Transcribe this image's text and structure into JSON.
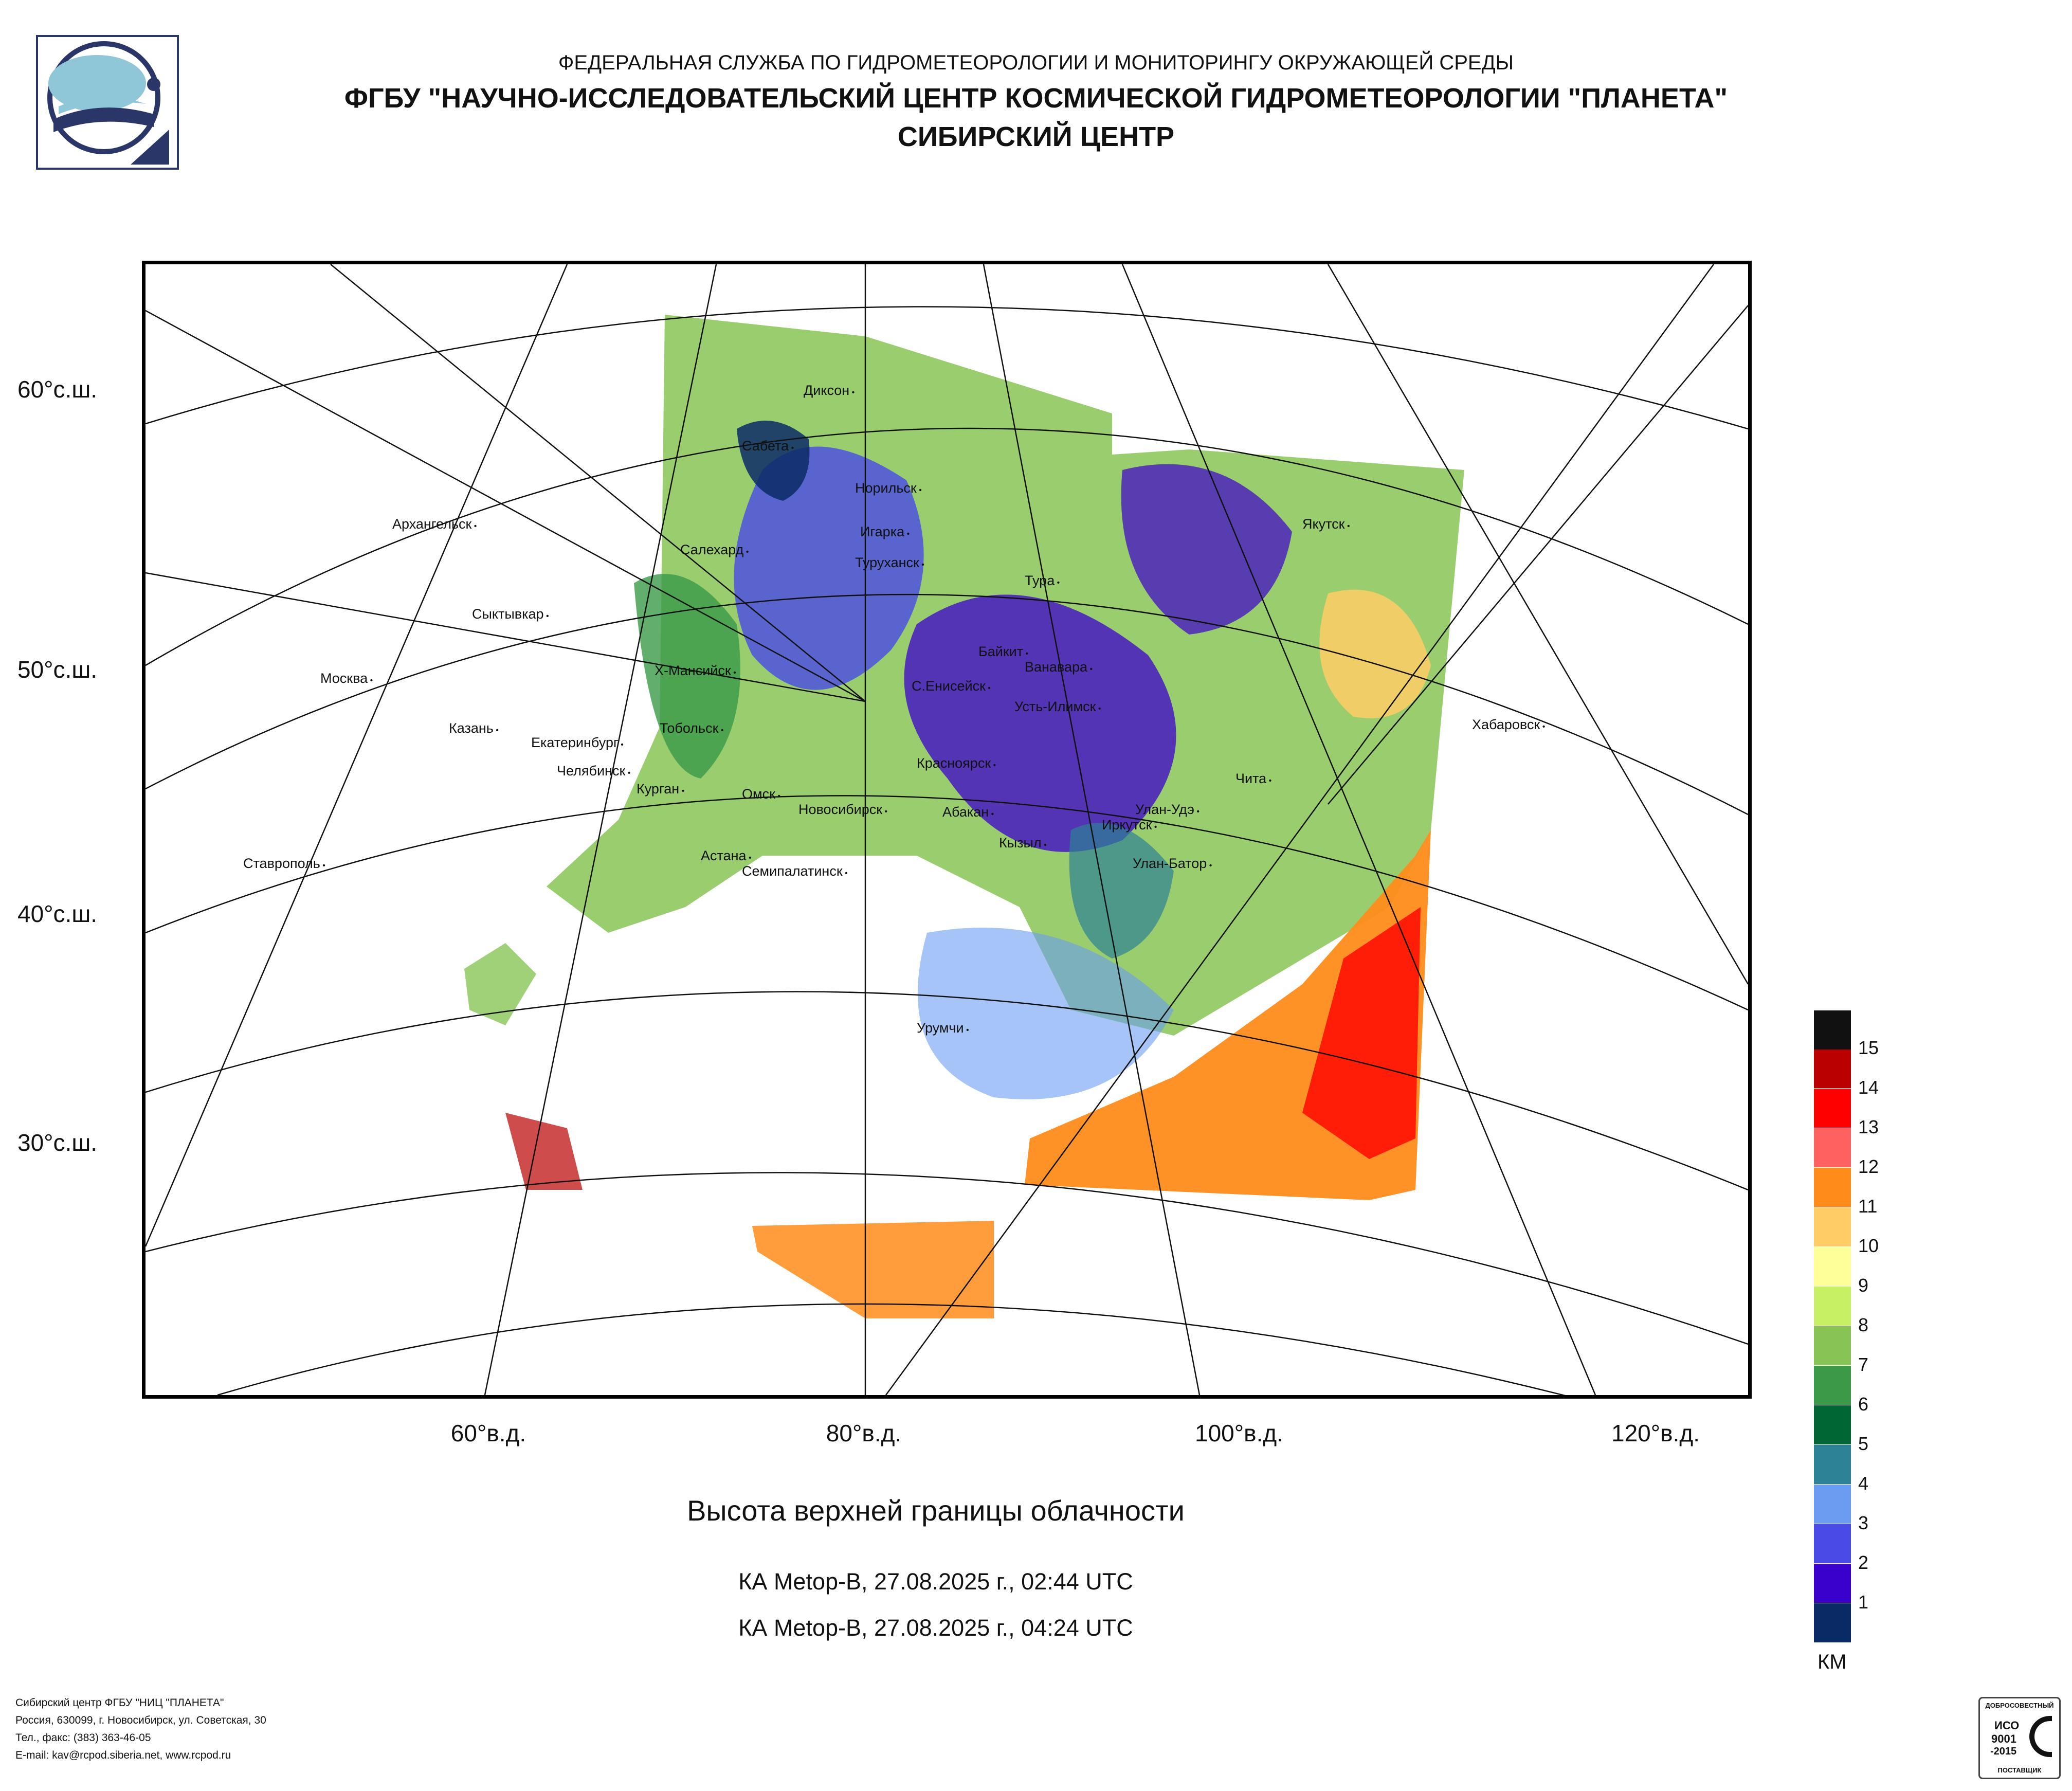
{
  "header": {
    "line1": "ФЕДЕРАЛЬНАЯ СЛУЖБА ПО ГИДРОМЕТЕОРОЛОГИИ И МОНИТОРИНГУ ОКРУЖАЮЩЕЙ СРЕДЫ",
    "line2": "ФГБУ \"НАУЧНО-ИССЛЕДОВАТЕЛЬСКИЙ ЦЕНТР КОСМИЧЕСКОЙ ГИДРОМЕТЕОРОЛОГИИ \"ПЛАНЕТА\"",
    "line3": "СИБИРСКИЙ ЦЕНТР"
  },
  "map": {
    "lat_labels": [
      "60°с.ш.",
      "50°с.ш.",
      "40°с.ш.",
      "30°с.ш."
    ],
    "lon_labels": [
      "60°в.д.",
      "80°в.д.",
      "100°в.д.",
      "120°в.д."
    ],
    "cities": [
      "Диксон",
      "Сабета",
      "Норильск",
      "Архангельск",
      "Салехард",
      "Игарка",
      "Туруханск",
      "Якутск",
      "Тура",
      "Сыктывкар",
      "Байкит",
      "Ванавара",
      "Москва",
      "Х-Мансийск",
      "С.Енисейск",
      "Усть-Илимск",
      "Хабаровск",
      "Казань",
      "Тобольск",
      "Екатеринбург",
      "Красноярск",
      "Челябинск",
      "Курган",
      "Чита",
      "Омск",
      "Новосибирск",
      "Абакан",
      "Улан-Удэ",
      "Иркутск",
      "Кызыл",
      "Ставрополь",
      "Астана",
      "Улан-Батор",
      "Семипалатинск",
      "Урумчи"
    ]
  },
  "product": {
    "title": "Высота верхней границы облачности",
    "pass1": "КА Metop-B, 27.08.2025 г., 02:44 UTC",
    "pass2": "КА Metop-B, 27.08.2025 г., 04:24 UTC"
  },
  "legend": {
    "unit": "КМ",
    "levels": [
      "1",
      "2",
      "3",
      "4",
      "5",
      "6",
      "7",
      "8",
      "9",
      "10",
      "11",
      "12",
      "13",
      "14",
      "15"
    ],
    "colors": [
      "#0a2a66",
      "#3a00cc",
      "#4a4ae6",
      "#6a9cf2",
      "#2e8296",
      "#006633",
      "#3a9a48",
      "#88c455",
      "#c8f064",
      "#ffff9a",
      "#ffcc66",
      "#ff8c1a",
      "#ff6060",
      "#ff0000",
      "#bb0000",
      "#111111"
    ]
  },
  "footer": {
    "line1": "Сибирский центр ФГБУ \"НИЦ \"ПЛАНЕТА\"",
    "line2": "Россия, 630099, г. Новосибирск, ул. Советская, 30",
    "line3": "Тел., факс: (383) 363-46-05",
    "line4": "E-mail: kav@rcpod.siberia.net, www.rcpod.ru"
  },
  "certificate": {
    "top": "ДОБРОСОВЕСТНЫЙ",
    "mid1": "ИСО",
    "mid2": "9001",
    "mid3": "-2015",
    "bottom": "ПОСТАВЩИК"
  }
}
